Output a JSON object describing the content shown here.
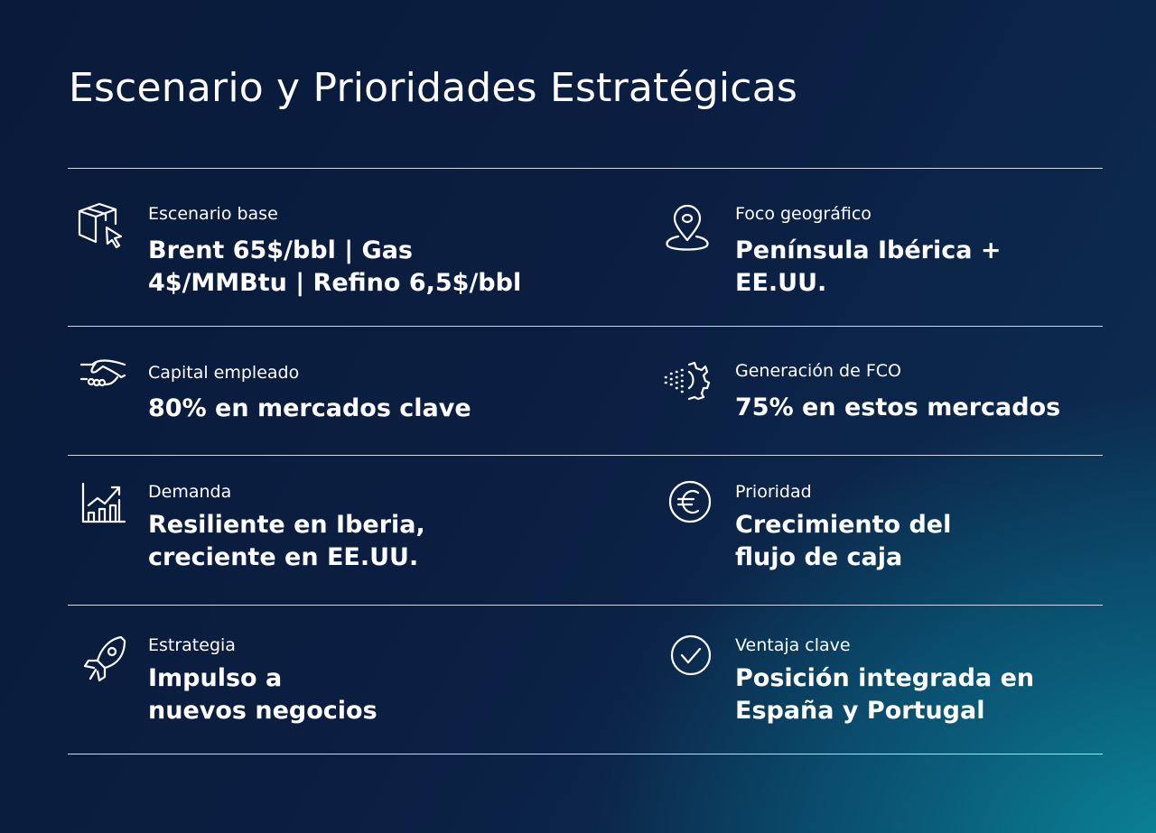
{
  "title": "Escenario y Prioridades Estratégicas",
  "items": [
    {
      "icon": "box-cursor-icon",
      "label": "Escenario base",
      "value": "Brent 65$/bbl | Gas 4$/MMBtu | Refino 6,5$/bbl"
    },
    {
      "icon": "location-pin-icon",
      "label": "Foco geográfico",
      "value": "Península Ibérica + EE.UU."
    },
    {
      "icon": "handshake-icon",
      "label": "Capital empleado",
      "value": "80% en mercados clave"
    },
    {
      "icon": "gear-particles-icon",
      "label": "Generación de FCO",
      "value": "75% en estos mercados"
    },
    {
      "icon": "growth-chart-icon",
      "label": "Demanda",
      "value": "Resiliente en Iberia, creciente en EE.UU."
    },
    {
      "icon": "euro-icon",
      "label": "Prioridad",
      "value": "Crecimiento del flujo de caja"
    },
    {
      "icon": "rocket-icon",
      "label": "Estrategia",
      "value": "Impulso a nuevos negocios"
    },
    {
      "icon": "check-circle-icon",
      "label": "Ventaja clave",
      "value": "Posición integrada en España y Portugal"
    }
  ]
}
